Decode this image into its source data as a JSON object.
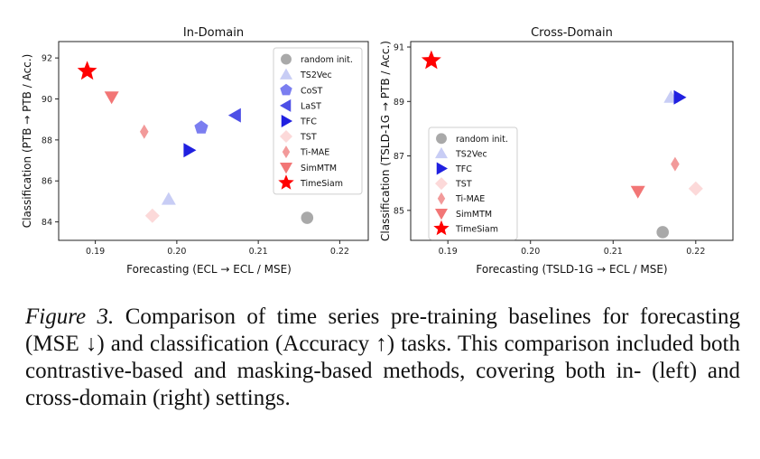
{
  "chart_data": [
    {
      "type": "scatter",
      "title": "In-Domain",
      "xlabel": "Forecasting (ECL → ECL / MSE)",
      "ylabel": "Classification (PTB → PTB / Acc.)",
      "xlim": [
        0.1855,
        0.2235
      ],
      "ylim": [
        83.1,
        92.8
      ],
      "xticks": [
        "0.19",
        "0.20",
        "0.21",
        "0.22"
      ],
      "xtick_values": [
        0.19,
        0.2,
        0.21,
        0.22
      ],
      "yticks": [
        "84",
        "86",
        "88",
        "90",
        "92"
      ],
      "ytick_values": [
        84,
        86,
        88,
        90,
        92
      ],
      "grid": false,
      "legend_position": "top-right",
      "series": [
        {
          "name": "random init.",
          "marker": "circle",
          "color": "#a9a9a9",
          "points": [
            [
              0.216,
              84.2
            ]
          ]
        },
        {
          "name": "TS2Vec",
          "marker": "triangle-up",
          "color": "#c8cdf5",
          "points": [
            [
              0.199,
              85.1
            ]
          ]
        },
        {
          "name": "CoST",
          "marker": "pentagon",
          "color": "#7b7ef0",
          "points": [
            [
              0.203,
              88.6
            ]
          ]
        },
        {
          "name": "LaST",
          "marker": "triangle-left",
          "color": "#4d4fe6",
          "points": [
            [
              0.2072,
              89.2
            ]
          ]
        },
        {
          "name": "TFC",
          "marker": "triangle-right",
          "color": "#2020e0",
          "points": [
            [
              0.2015,
              87.5
            ]
          ]
        },
        {
          "name": "TST",
          "marker": "diamond",
          "color": "#fcd9d9",
          "points": [
            [
              0.197,
              84.3
            ]
          ]
        },
        {
          "name": "Ti-MAE",
          "marker": "thin-diamond",
          "color": "#f29a9a",
          "points": [
            [
              0.196,
              88.4
            ]
          ]
        },
        {
          "name": "SimMTM",
          "marker": "triangle-down",
          "color": "#f27676",
          "points": [
            [
              0.192,
              90.1
            ]
          ]
        },
        {
          "name": "TimeSiam",
          "marker": "star",
          "color": "#ff0000",
          "points": [
            [
              0.189,
              91.35
            ]
          ]
        }
      ]
    },
    {
      "type": "scatter",
      "title": "Cross-Domain",
      "xlabel": "Forecasting (TSLD-1G → ECL / MSE)",
      "ylabel": "Classification (TSLD-1G → PTB / Acc.)",
      "xlim": [
        0.1855,
        0.2245
      ],
      "ylim": [
        83.9,
        91.2
      ],
      "xticks": [
        "0.19",
        "0.20",
        "0.21",
        "0.22"
      ],
      "xtick_values": [
        0.19,
        0.2,
        0.21,
        0.22
      ],
      "yticks": [
        "85",
        "87",
        "89",
        "91"
      ],
      "ytick_values": [
        85,
        87,
        89,
        91
      ],
      "grid": false,
      "legend_position": "bottom-left",
      "series": [
        {
          "name": "random init.",
          "marker": "circle",
          "color": "#a9a9a9",
          "points": [
            [
              0.216,
              84.2
            ]
          ]
        },
        {
          "name": "TS2Vec",
          "marker": "triangle-up",
          "color": "#c8cdf5",
          "points": [
            [
              0.217,
              89.15
            ]
          ]
        },
        {
          "name": "TFC",
          "marker": "triangle-right",
          "color": "#2020e0",
          "points": [
            [
              0.218,
              89.15
            ]
          ]
        },
        {
          "name": "TST",
          "marker": "diamond",
          "color": "#fcd9d9",
          "points": [
            [
              0.22,
              85.8
            ]
          ]
        },
        {
          "name": "Ti-MAE",
          "marker": "thin-diamond",
          "color": "#f29a9a",
          "points": [
            [
              0.2175,
              86.7
            ]
          ]
        },
        {
          "name": "SimMTM",
          "marker": "triangle-down",
          "color": "#f27676",
          "points": [
            [
              0.213,
              85.7
            ]
          ]
        },
        {
          "name": "TimeSiam",
          "marker": "star",
          "color": "#ff0000",
          "points": [
            [
              0.188,
              90.5
            ]
          ]
        }
      ]
    }
  ],
  "caption": {
    "lead": "Figure 3.",
    "text": " Comparison of time series pre-training baselines for forecasting (MSE ↓) and classification (Accuracy ↑) tasks. This comparison included both contrastive-based and masking-based methods, covering both in- (left) and cross-domain (right) settings."
  }
}
